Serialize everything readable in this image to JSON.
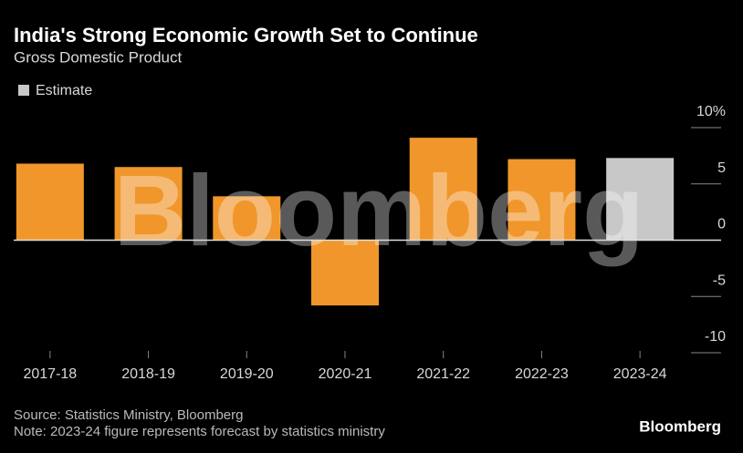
{
  "chart_data": {
    "type": "bar",
    "title": "India's Strong Economic Growth Set to Continue",
    "subtitle": "Gross Domestic Product",
    "legend": [
      {
        "label": "Estimate",
        "color": "#c8c8c8"
      }
    ],
    "categories": [
      "2017-18",
      "2018-19",
      "2019-20",
      "2020-21",
      "2021-22",
      "2022-23",
      "2023-24"
    ],
    "values": [
      6.8,
      6.5,
      3.9,
      -5.8,
      9.1,
      7.2,
      7.3
    ],
    "colors": [
      "#f0962b",
      "#f0962b",
      "#f0962b",
      "#f0962b",
      "#f0962b",
      "#f0962b",
      "#c8c8c8"
    ],
    "ylim": [
      -10,
      10
    ],
    "yticks": [
      {
        "value": 10,
        "label": "10%"
      },
      5,
      0,
      -5,
      -10
    ],
    "watermark": "Bloomberg",
    "source": "Source: Statistics Ministry, Bloomberg",
    "note": "Note: 2023-24 figure represents forecast by statistics ministry",
    "logo": "Bloomberg"
  }
}
